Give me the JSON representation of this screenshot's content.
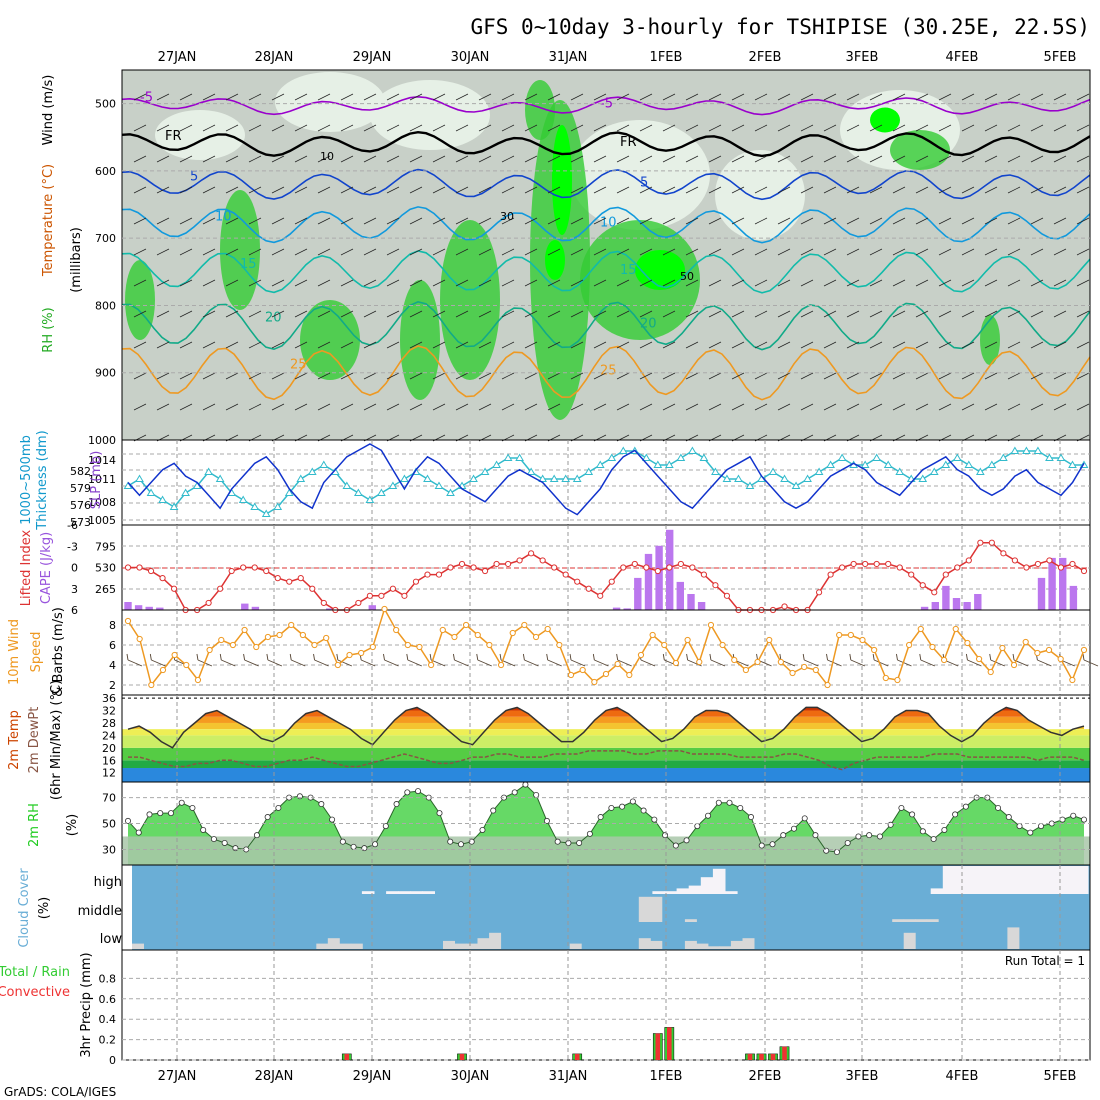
{
  "title": "GFS 0~10day 3-hourly for TSHIPISE (30.25E, 22.5S)",
  "credit": "GrADS: COLA/IGES",
  "dates": [
    "27JAN",
    "28JAN",
    "29JAN",
    "30JAN",
    "31JAN",
    "1FEB",
    "2FEB",
    "3FEB",
    "4FEB",
    "5FEB"
  ],
  "colors": {
    "rh_green": "#33cc33",
    "rh_bright": "#00ff00",
    "rh_pale": "#e6f0e6",
    "rh_gray": "#c8d0c8",
    "temp_purple": "#9900cc",
    "temp_freezing": "#000000",
    "temp_blue": "#1144cc",
    "temp_lightblue": "#1199dd",
    "temp_cyan": "#11bbaa",
    "temp_teal": "#11aa88",
    "temp_orange": "#ee9922",
    "temp_darkorange": "#dd6611",
    "temp_magenta": "#cc0088",
    "slp": "#1133cc",
    "thickness": "#33bbcc",
    "lifted": "#dd3333",
    "cape": "#bb77ee",
    "wind": "#ee9922",
    "barb": "#554433",
    "dewpt": "#885544",
    "rh2m": "#22cc22",
    "cloud_blue": "#6aaed6",
    "cloud_gray": "#d8d8d8",
    "precip_green": "#33cc33",
    "precip_red": "#ee3333"
  },
  "chart_data": [
    {
      "type": "heatmap",
      "name": "Cross-section",
      "ylabel_parts": [
        "RH (%)",
        "Temperature (°C)",
        "Wind (m/s)"
      ],
      "ylabel_units": "(millibars)",
      "yticks": [
        500,
        600,
        700,
        800,
        900,
        1000
      ],
      "ylim": [
        1000,
        450
      ],
      "isotherms": [
        {
          "label": "-5",
          "level_mb": 503,
          "color": "#9900cc"
        },
        {
          "label": "FR",
          "level_mb": 560,
          "color": "#000000"
        },
        {
          "label": "5",
          "level_mb": 620,
          "color": "#1144cc"
        },
        {
          "label": "10",
          "level_mb": 680,
          "color": "#1199dd"
        },
        {
          "label": "15",
          "level_mb": 750,
          "color": "#11bbaa"
        },
        {
          "label": "20",
          "level_mb": 830,
          "color": "#11aa88"
        },
        {
          "label": "25",
          "level_mb": 900,
          "color": "#ee9922"
        }
      ],
      "rh_labels": [
        "10",
        "30",
        "50"
      ]
    },
    {
      "type": "line",
      "name": "SLP and Thickness",
      "ylabel_left": "Thickness (dm)",
      "ylabel_left_title": "1000~500mb",
      "ylabel_right": "SLP (mb)",
      "left_ticks": [
        573,
        576,
        579,
        582
      ],
      "right_ticks": [
        1005,
        1008,
        1011,
        1014
      ],
      "slp_mb": [
        1010,
        1008,
        1010,
        1012,
        1013,
        1011,
        1010,
        1008,
        1006,
        1009,
        1011,
        1013,
        1014,
        1012,
        1009,
        1007,
        1006,
        1010,
        1012,
        1014,
        1015,
        1016,
        1015,
        1012,
        1009,
        1012,
        1014,
        1013,
        1011,
        1009,
        1008,
        1007,
        1009,
        1011,
        1012,
        1011,
        1010,
        1008,
        1006,
        1005,
        1007,
        1009,
        1012,
        1014,
        1015,
        1013,
        1011,
        1009,
        1007,
        1006,
        1008,
        1010,
        1012,
        1013,
        1014,
        1011,
        1009,
        1007,
        1006,
        1007,
        1009,
        1011,
        1012,
        1013,
        1012,
        1010,
        1009,
        1008,
        1010,
        1012,
        1013,
        1014,
        1012,
        1011,
        1009,
        1008,
        1009,
        1011,
        1012,
        1010,
        1009,
        1008,
        1010,
        1013
      ],
      "thickness_dm": [
        577,
        578,
        576,
        575,
        574,
        576,
        577,
        579,
        578,
        576,
        575,
        574,
        573,
        574,
        576,
        578,
        579,
        580,
        579,
        577,
        576,
        575,
        576,
        577,
        578,
        579,
        578,
        577,
        576,
        577,
        578,
        579,
        580,
        581,
        581,
        579,
        578,
        578,
        578,
        578,
        579,
        580,
        581,
        582,
        582,
        581,
        580,
        580,
        581,
        582,
        581,
        579,
        578,
        578,
        577,
        578,
        579,
        578,
        577,
        578,
        579,
        580,
        581,
        580,
        580,
        581,
        580,
        579,
        578,
        578,
        579,
        580,
        581,
        580,
        579,
        580,
        581,
        582,
        582,
        582,
        581,
        581,
        580,
        580
      ]
    },
    {
      "type": "bar",
      "name": "Lifted Index and CAPE",
      "ylabel_left": "Lifted Index",
      "ylabel_right": "CAPE (J/kg)",
      "left_ticks": [
        -6,
        -3,
        0,
        3,
        6
      ],
      "right_ticks": [
        265,
        530,
        795
      ],
      "lifted_index": [
        0,
        0,
        0.5,
        1.5,
        3,
        6,
        6,
        5,
        3,
        0.5,
        0,
        0,
        0.5,
        1.5,
        2,
        1.5,
        3,
        5,
        6,
        6,
        5,
        4,
        4,
        3,
        4,
        2,
        1,
        1,
        0,
        -0.5,
        0,
        0.5,
        -0.5,
        -0.5,
        -1,
        -2,
        -1,
        0,
        1,
        2,
        3,
        4,
        2,
        0,
        -0.5,
        0,
        0.5,
        0,
        -0.5,
        0,
        1,
        2.5,
        4,
        6,
        6,
        6,
        6,
        5.5,
        6,
        6,
        3.5,
        1,
        0,
        -0.5,
        -0.5,
        -0.5,
        -0.5,
        0,
        1,
        2.5,
        3.5,
        1,
        0,
        -1,
        -3.5,
        -3.5,
        -2,
        -1,
        0,
        -0.5,
        -1,
        0,
        -0.5,
        0.5
      ],
      "cape": [
        100,
        60,
        40,
        30,
        0,
        0,
        0,
        0,
        0,
        0,
        0,
        80,
        40,
        0,
        0,
        0,
        0,
        0,
        0,
        20,
        0,
        0,
        0,
        60,
        0,
        0,
        0,
        0,
        0,
        0,
        0,
        0,
        0,
        0,
        0,
        0,
        0,
        0,
        0,
        0,
        0,
        0,
        0,
        0,
        0,
        0,
        30,
        20,
        400,
        700,
        800,
        1000,
        350,
        200,
        100,
        0,
        0,
        0,
        0,
        0,
        0,
        0,
        0,
        0,
        0,
        0,
        0,
        0,
        0,
        0,
        0,
        0,
        0,
        0,
        0,
        40,
        100,
        300,
        150,
        100,
        200,
        0,
        0,
        0,
        0,
        0,
        400,
        650,
        650,
        300,
        0
      ]
    },
    {
      "type": "line",
      "name": "10m Wind",
      "ylabel": "10m Wind Speed & Barbs (m/s)",
      "yticks": [
        2,
        4,
        6,
        8
      ],
      "wind_speed": [
        8.4,
        6.6,
        2,
        3.5,
        5,
        4,
        2.5,
        5.5,
        6.5,
        6,
        7.5,
        5.8,
        6.8,
        7,
        8,
        7,
        6,
        6.7,
        4,
        5,
        5.2,
        5.8,
        9.6,
        7.5,
        6,
        5.8,
        4,
        7.5,
        6.8,
        8,
        7,
        6,
        4,
        7.2,
        8,
        6.8,
        7.6,
        6,
        3,
        3.5,
        2.3,
        3.1,
        4.1,
        3,
        5,
        7,
        6,
        4.2,
        6.5,
        4.3,
        8,
        6,
        4.5,
        3.5,
        4.3,
        6.5,
        4.3,
        3.2,
        3.8,
        3.5,
        2,
        7,
        7,
        6.5,
        5.5,
        2.7,
        2.5,
        6,
        7.6,
        5.8,
        4.5,
        7.6,
        6.2,
        4.6,
        3.3,
        5.7,
        4,
        6.3,
        5.2,
        5.5,
        4.6,
        2.5,
        5.5
      ]
    },
    {
      "type": "area",
      "name": "2m Temperature and Dew Point",
      "ylabel": "2m Temp / 2m DewPt (6hr Min/Max) (°C)",
      "yticks": [
        12,
        16,
        20,
        24,
        28,
        32,
        36
      ],
      "temperature_c": [
        26,
        27,
        25,
        22,
        20,
        25,
        28,
        31,
        32,
        30,
        28,
        26,
        23,
        22,
        24,
        28,
        31,
        32,
        30,
        28,
        26,
        23,
        21,
        25,
        29,
        32,
        33,
        31,
        28,
        25,
        22,
        21,
        25,
        29,
        32,
        33,
        31,
        28,
        25,
        22,
        22,
        25,
        29,
        32,
        33,
        31,
        28,
        25,
        22,
        23,
        26,
        30,
        32,
        32,
        31,
        28,
        25,
        22,
        23,
        26,
        30,
        33,
        33,
        31,
        28,
        25,
        22,
        23,
        26,
        30,
        32,
        32,
        31,
        27,
        24,
        22,
        24,
        28,
        31,
        33,
        32,
        29,
        27,
        25,
        24,
        26,
        27
      ],
      "dewpoint_c": [
        17,
        17,
        16,
        15,
        14,
        14,
        15,
        15,
        16,
        16,
        15,
        14,
        14,
        15,
        16,
        16,
        17,
        16,
        15,
        14,
        14,
        15,
        16,
        17,
        18,
        17,
        16,
        15,
        15,
        16,
        17,
        17,
        18,
        18,
        17,
        17,
        17,
        18,
        18,
        18,
        19,
        19,
        19,
        19,
        18,
        18,
        19,
        19,
        19,
        18,
        18,
        18,
        18,
        17,
        17,
        17,
        17,
        18,
        18,
        17,
        16,
        14,
        13,
        15,
        16,
        17,
        17,
        17,
        17,
        17,
        18,
        18,
        18,
        17,
        17,
        17,
        17,
        17,
        17,
        16,
        17,
        17,
        17,
        16
      ]
    },
    {
      "type": "area",
      "name": "2m RH",
      "ylabel": "2m RH (%)",
      "yticks": [
        30,
        50,
        70
      ],
      "rh_percent": [
        52,
        43,
        57,
        58,
        58,
        66,
        62,
        45,
        38,
        35,
        31,
        30,
        41,
        55,
        62,
        70,
        71,
        70,
        65,
        53,
        36,
        32,
        31,
        34,
        48,
        65,
        74,
        75,
        70,
        58,
        36,
        34,
        36,
        45,
        60,
        70,
        74,
        80,
        72,
        52,
        36,
        35,
        35,
        42,
        55,
        62,
        63,
        67,
        60,
        53,
        41,
        33,
        37,
        48,
        56,
        66,
        66,
        62,
        55,
        33,
        34,
        41,
        46,
        54,
        41,
        29,
        28,
        35,
        40,
        41,
        40,
        49,
        62,
        57,
        44,
        38,
        45,
        57,
        63,
        70,
        70,
        62,
        55,
        48,
        43,
        48,
        50,
        53,
        56,
        53
      ]
    },
    {
      "type": "bar",
      "name": "Cloud Cover",
      "ylabel": "Cloud Cover (%)",
      "levels": [
        "high",
        "middle",
        "low"
      ],
      "high": [
        0,
        0,
        0,
        0,
        0,
        0,
        0,
        0,
        0,
        0,
        0,
        0,
        0,
        0,
        0,
        0,
        0,
        0,
        0,
        10,
        0,
        10,
        10,
        10,
        10,
        0,
        0,
        0,
        0,
        0,
        0,
        0,
        0,
        0,
        0,
        0,
        0,
        0,
        0,
        0,
        0,
        0,
        0,
        10,
        10,
        20,
        30,
        60,
        90,
        10,
        0,
        0,
        0,
        0,
        0,
        0,
        0,
        0,
        0,
        0,
        0,
        0,
        0,
        0,
        0,
        0,
        20,
        100,
        100,
        100,
        100,
        100,
        100,
        100,
        100,
        100,
        100,
        100,
        100
      ],
      "middle": [
        0,
        0,
        0,
        0,
        0,
        0,
        0,
        0,
        0,
        0,
        0,
        0,
        0,
        0,
        0,
        0,
        0,
        0,
        0,
        0,
        0,
        0,
        0,
        0,
        0,
        0,
        0,
        0,
        0,
        0,
        0,
        0,
        0,
        0,
        0,
        0,
        0,
        0,
        0,
        0,
        0,
        0,
        0,
        0,
        90,
        90,
        0,
        0,
        10,
        0,
        0,
        0,
        0,
        0,
        0,
        0,
        0,
        0,
        0,
        0,
        0,
        0,
        0,
        0,
        0,
        0,
        10,
        10,
        10,
        10,
        0,
        0,
        0,
        0,
        0,
        0,
        0,
        0,
        0,
        0,
        0,
        0,
        0
      ],
      "low": [
        20,
        0,
        0,
        0,
        0,
        0,
        0,
        0,
        0,
        0,
        0,
        0,
        0,
        0,
        0,
        0,
        20,
        40,
        20,
        20,
        0,
        0,
        0,
        0,
        0,
        0,
        0,
        30,
        20,
        20,
        40,
        60,
        0,
        0,
        0,
        0,
        0,
        0,
        20,
        0,
        0,
        0,
        0,
        0,
        40,
        30,
        0,
        0,
        30,
        20,
        10,
        10,
        30,
        40,
        0,
        0,
        0,
        0,
        0,
        0,
        0,
        0,
        0,
        0,
        0,
        0,
        0,
        60,
        0,
        0,
        0,
        0,
        0,
        0,
        0,
        0,
        80,
        0,
        0,
        0,
        0,
        0,
        0
      ]
    },
    {
      "type": "bar",
      "name": "Precipitation",
      "ylabel": "3hr Precip (mm)",
      "legend": [
        "Total / Rain",
        "Convective"
      ],
      "run_total": "Run Total = 1",
      "yticks": [
        0,
        0.2,
        0.4,
        0.6,
        0.8
      ],
      "precip_mm": [
        0,
        0,
        0,
        0,
        0,
        0,
        0,
        0,
        0,
        0,
        0,
        0,
        0,
        0,
        0,
        0,
        0,
        0,
        0,
        0.06,
        0,
        0,
        0,
        0,
        0,
        0,
        0,
        0,
        0,
        0.06,
        0,
        0,
        0,
        0,
        0,
        0,
        0,
        0,
        0,
        0.06,
        0,
        0,
        0,
        0,
        0,
        0,
        0.26,
        0.32,
        0,
        0,
        0,
        0,
        0,
        0,
        0.06,
        0.06,
        0.06,
        0.13,
        0,
        0,
        0,
        0,
        0,
        0,
        0,
        0,
        0,
        0,
        0,
        0,
        0,
        0,
        0,
        0,
        0,
        0,
        0,
        0,
        0,
        0,
        0,
        0,
        0,
        0
      ]
    }
  ]
}
